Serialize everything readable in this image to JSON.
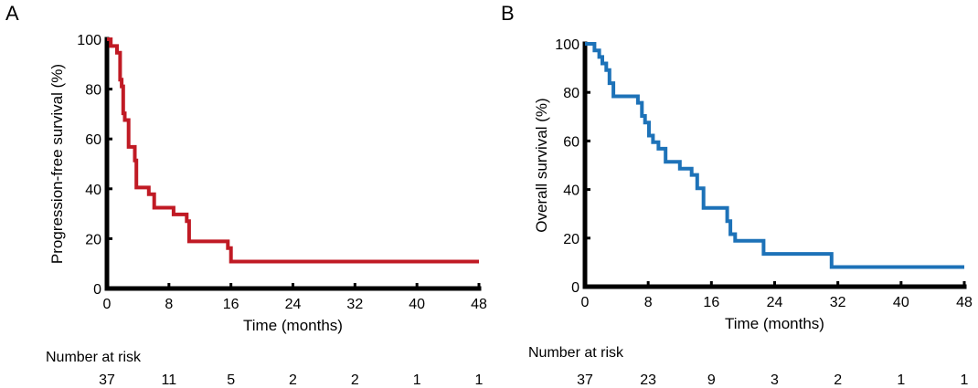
{
  "chart_data": [
    {
      "type": "line",
      "panel": "A",
      "xlabel": "Time (months)",
      "ylabel": "Progression-free survival (%)",
      "xlim": [
        0,
        48
      ],
      "ylim": [
        0,
        100
      ],
      "x_ticks": [
        0,
        8,
        16,
        24,
        32,
        40,
        48
      ],
      "y_ticks": [
        0,
        20,
        40,
        60,
        80,
        100
      ],
      "grid": false,
      "series_color": "#c01a24",
      "series": [
        {
          "step": true,
          "x": [
            0,
            0.5,
            1.3,
            1.7,
            1.9,
            2.1,
            2.3,
            2.8,
            3.6,
            3.8,
            5.4,
            6.1,
            8.6,
            10.3,
            10.6,
            15.6,
            16.0,
            48
          ],
          "y": [
            100,
            97.3,
            94.6,
            83.8,
            81.1,
            70.3,
            67.6,
            56.8,
            51.4,
            40.5,
            37.8,
            32.4,
            29.7,
            27.0,
            18.9,
            16.2,
            10.8,
            10.8
          ]
        }
      ],
      "risk_table": {
        "title": "Number at risk",
        "times": [
          0,
          8,
          16,
          24,
          32,
          40,
          48
        ],
        "values": [
          "37",
          "11",
          "5",
          "2",
          "2",
          "1",
          "1"
        ]
      }
    },
    {
      "type": "line",
      "panel": "B",
      "xlabel": "Time (months)",
      "ylabel": "Overall survival (%)",
      "xlim": [
        0,
        48
      ],
      "ylim": [
        0,
        100
      ],
      "x_ticks": [
        0,
        8,
        16,
        24,
        32,
        40,
        48
      ],
      "y_ticks": [
        0,
        20,
        40,
        60,
        80,
        100
      ],
      "grid": false,
      "series_color": "#1d72b8",
      "series": [
        {
          "step": true,
          "x": [
            0,
            1.2,
            1.8,
            2.2,
            2.7,
            3.1,
            3.6,
            6.7,
            7.2,
            7.6,
            8.1,
            8.6,
            9.3,
            10.2,
            12.0,
            13.5,
            14.2,
            15.0,
            18.0,
            18.4,
            19.0,
            22.6,
            31.2,
            48
          ],
          "y": [
            100,
            97.3,
            94.6,
            91.9,
            89.2,
            83.8,
            78.4,
            75.7,
            70.3,
            67.6,
            62.2,
            59.5,
            56.8,
            51.4,
            48.6,
            46.0,
            40.5,
            32.4,
            27.0,
            21.6,
            18.9,
            13.5,
            8.1,
            8.1
          ]
        }
      ],
      "risk_table": {
        "title": "Number at risk",
        "times": [
          0,
          8,
          16,
          24,
          32,
          40,
          48
        ],
        "values": [
          "37",
          "23",
          "9",
          "3",
          "2",
          "1",
          "1"
        ]
      }
    }
  ]
}
